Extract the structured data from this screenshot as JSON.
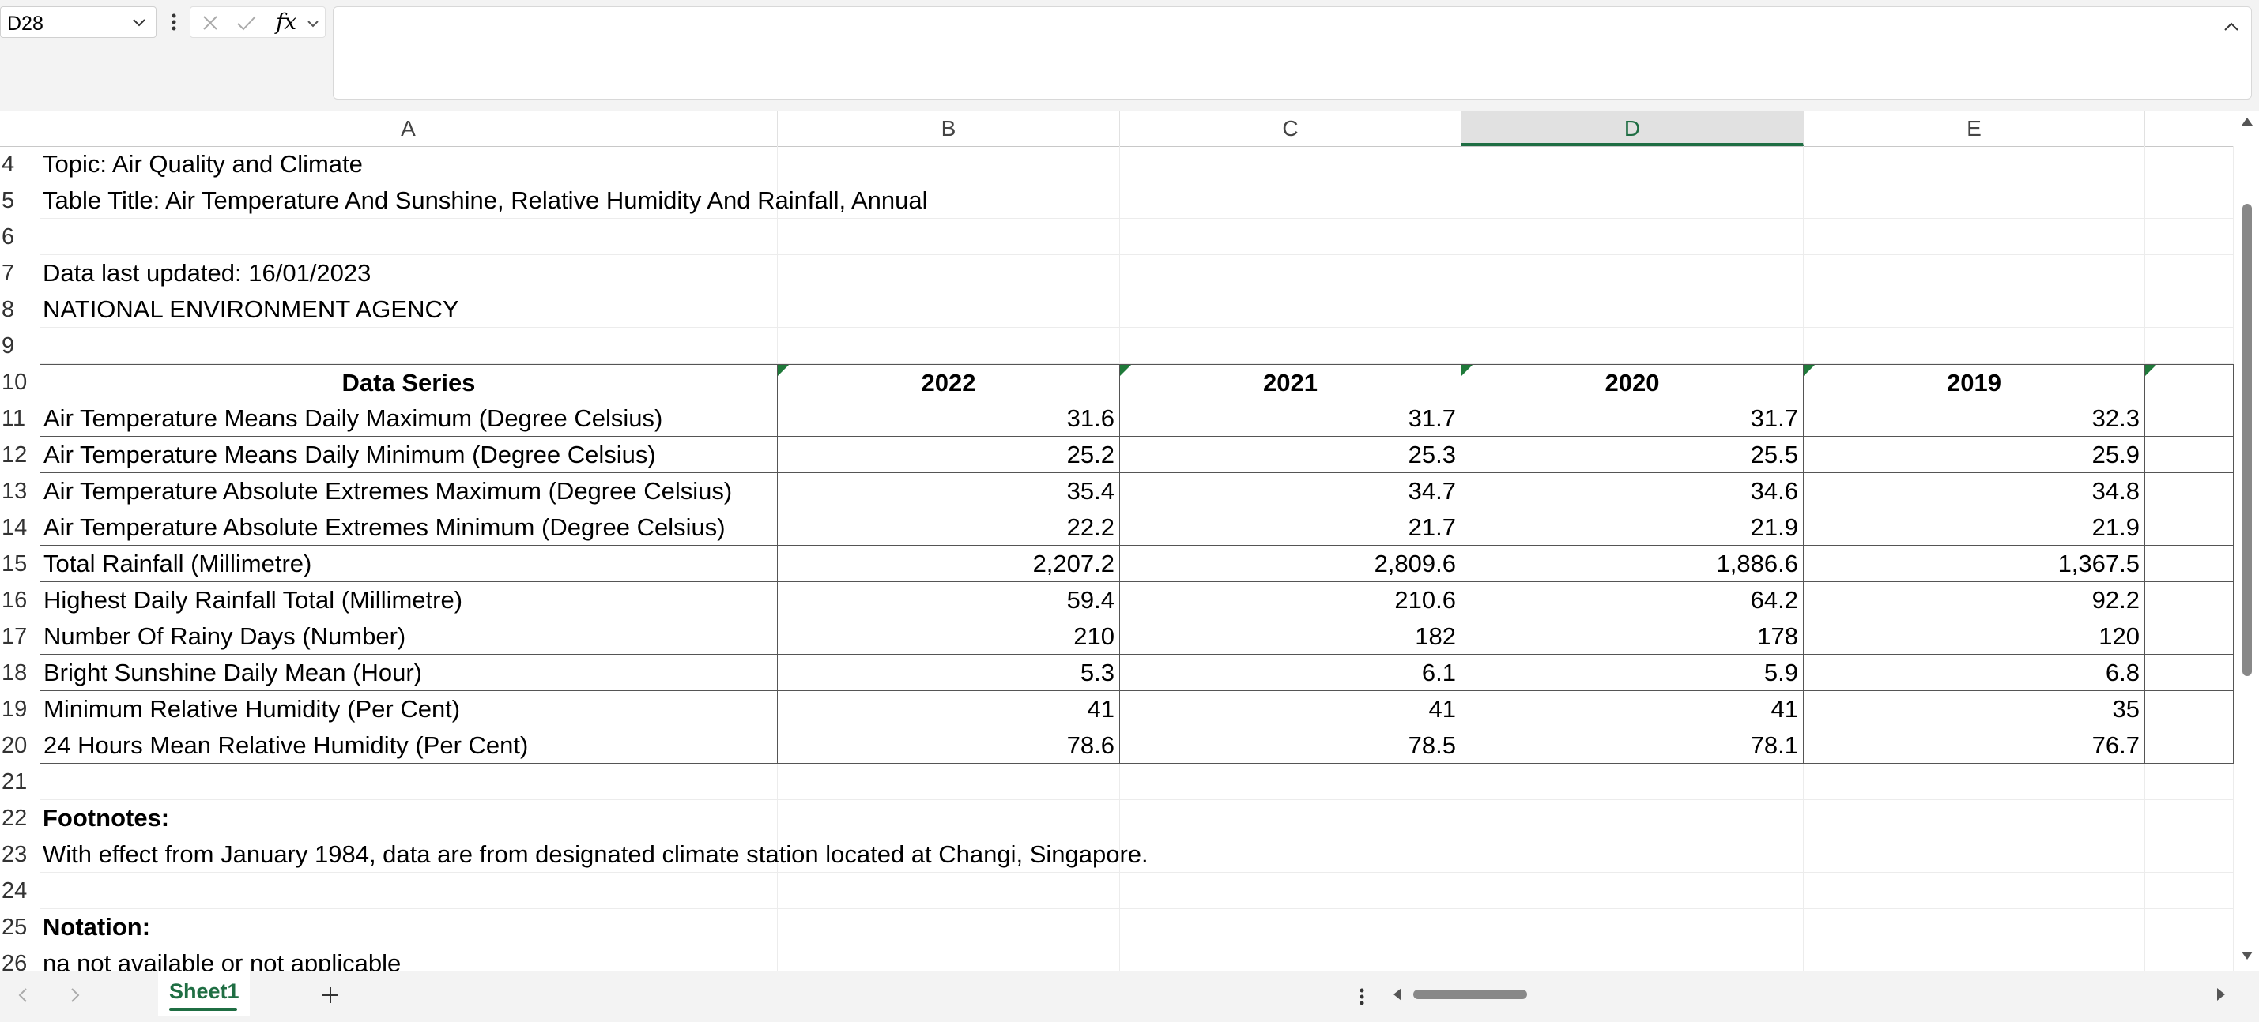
{
  "formula_bar": {
    "name_box": "D28",
    "fx_label": "fx",
    "formula_value": ""
  },
  "columns": [
    {
      "label": "A",
      "selected": false
    },
    {
      "label": "B",
      "selected": false
    },
    {
      "label": "C",
      "selected": false
    },
    {
      "label": "D",
      "selected": true
    },
    {
      "label": "E",
      "selected": false
    }
  ],
  "rows": [
    {
      "num": "4",
      "cells": [
        "Topic: Air Quality and Climate",
        "",
        "",
        "",
        ""
      ]
    },
    {
      "num": "5",
      "cells": [
        "Table Title: Air Temperature And Sunshine, Relative Humidity And Rainfall, Annual",
        "",
        "",
        "",
        ""
      ]
    },
    {
      "num": "6",
      "cells": [
        "",
        "",
        "",
        "",
        ""
      ]
    },
    {
      "num": "7",
      "cells": [
        "Data last updated: 16/01/2023",
        "",
        "",
        "",
        ""
      ]
    },
    {
      "num": "8",
      "cells": [
        "NATIONAL ENVIRONMENT AGENCY",
        "",
        "",
        "",
        ""
      ]
    },
    {
      "num": "9",
      "cells": [
        "",
        "",
        "",
        "",
        ""
      ]
    },
    {
      "num": "10",
      "cells": [
        "Data Series",
        "2022",
        "2021",
        "2020",
        "2019"
      ]
    },
    {
      "num": "11",
      "cells": [
        "Air Temperature Means Daily Maximum (Degree Celsius)",
        "31.6",
        "31.7",
        "31.7",
        "32.3"
      ]
    },
    {
      "num": "12",
      "cells": [
        "Air Temperature Means Daily Minimum (Degree Celsius)",
        "25.2",
        "25.3",
        "25.5",
        "25.9"
      ]
    },
    {
      "num": "13",
      "cells": [
        "Air Temperature Absolute Extremes Maximum (Degree Celsius)",
        "35.4",
        "34.7",
        "34.6",
        "34.8"
      ]
    },
    {
      "num": "14",
      "cells": [
        "Air Temperature Absolute Extremes Minimum (Degree Celsius)",
        "22.2",
        "21.7",
        "21.9",
        "21.9"
      ]
    },
    {
      "num": "15",
      "cells": [
        "Total Rainfall (Millimetre)",
        "2,207.2",
        "2,809.6",
        "1,886.6",
        "1,367.5"
      ]
    },
    {
      "num": "16",
      "cells": [
        "Highest Daily Rainfall Total (Millimetre)",
        "59.4",
        "210.6",
        "64.2",
        "92.2"
      ]
    },
    {
      "num": "17",
      "cells": [
        "Number Of Rainy Days (Number)",
        "210",
        "182",
        "178",
        "120"
      ]
    },
    {
      "num": "18",
      "cells": [
        "Bright Sunshine Daily Mean (Hour)",
        "5.3",
        "6.1",
        "5.9",
        "6.8"
      ]
    },
    {
      "num": "19",
      "cells": [
        "Minimum Relative Humidity (Per Cent)",
        "41",
        "41",
        "41",
        "35"
      ]
    },
    {
      "num": "20",
      "cells": [
        "24 Hours Mean Relative Humidity (Per Cent)",
        "78.6",
        "78.5",
        "78.1",
        "76.7"
      ]
    },
    {
      "num": "21",
      "cells": [
        "",
        "",
        "",
        "",
        ""
      ]
    },
    {
      "num": "22",
      "cells": [
        "Footnotes:",
        "",
        "",
        "",
        ""
      ]
    },
    {
      "num": "23",
      "cells": [
        "With effect from January 1984, data are from designated climate station located at Changi, Singapore.",
        "",
        "",
        "",
        ""
      ]
    },
    {
      "num": "24",
      "cells": [
        "",
        "",
        "",
        "",
        ""
      ]
    },
    {
      "num": "25",
      "cells": [
        "Notation:",
        "",
        "",
        "",
        ""
      ]
    },
    {
      "num": "26",
      "cells": [
        "na   not available or not applicable",
        "",
        "",
        "",
        ""
      ]
    }
  ],
  "sheet_tabs": [
    {
      "label": "Sheet1",
      "active": true
    }
  ],
  "colors": {
    "accent": "#1f6e43",
    "header_bg": "#e1e1e1"
  }
}
